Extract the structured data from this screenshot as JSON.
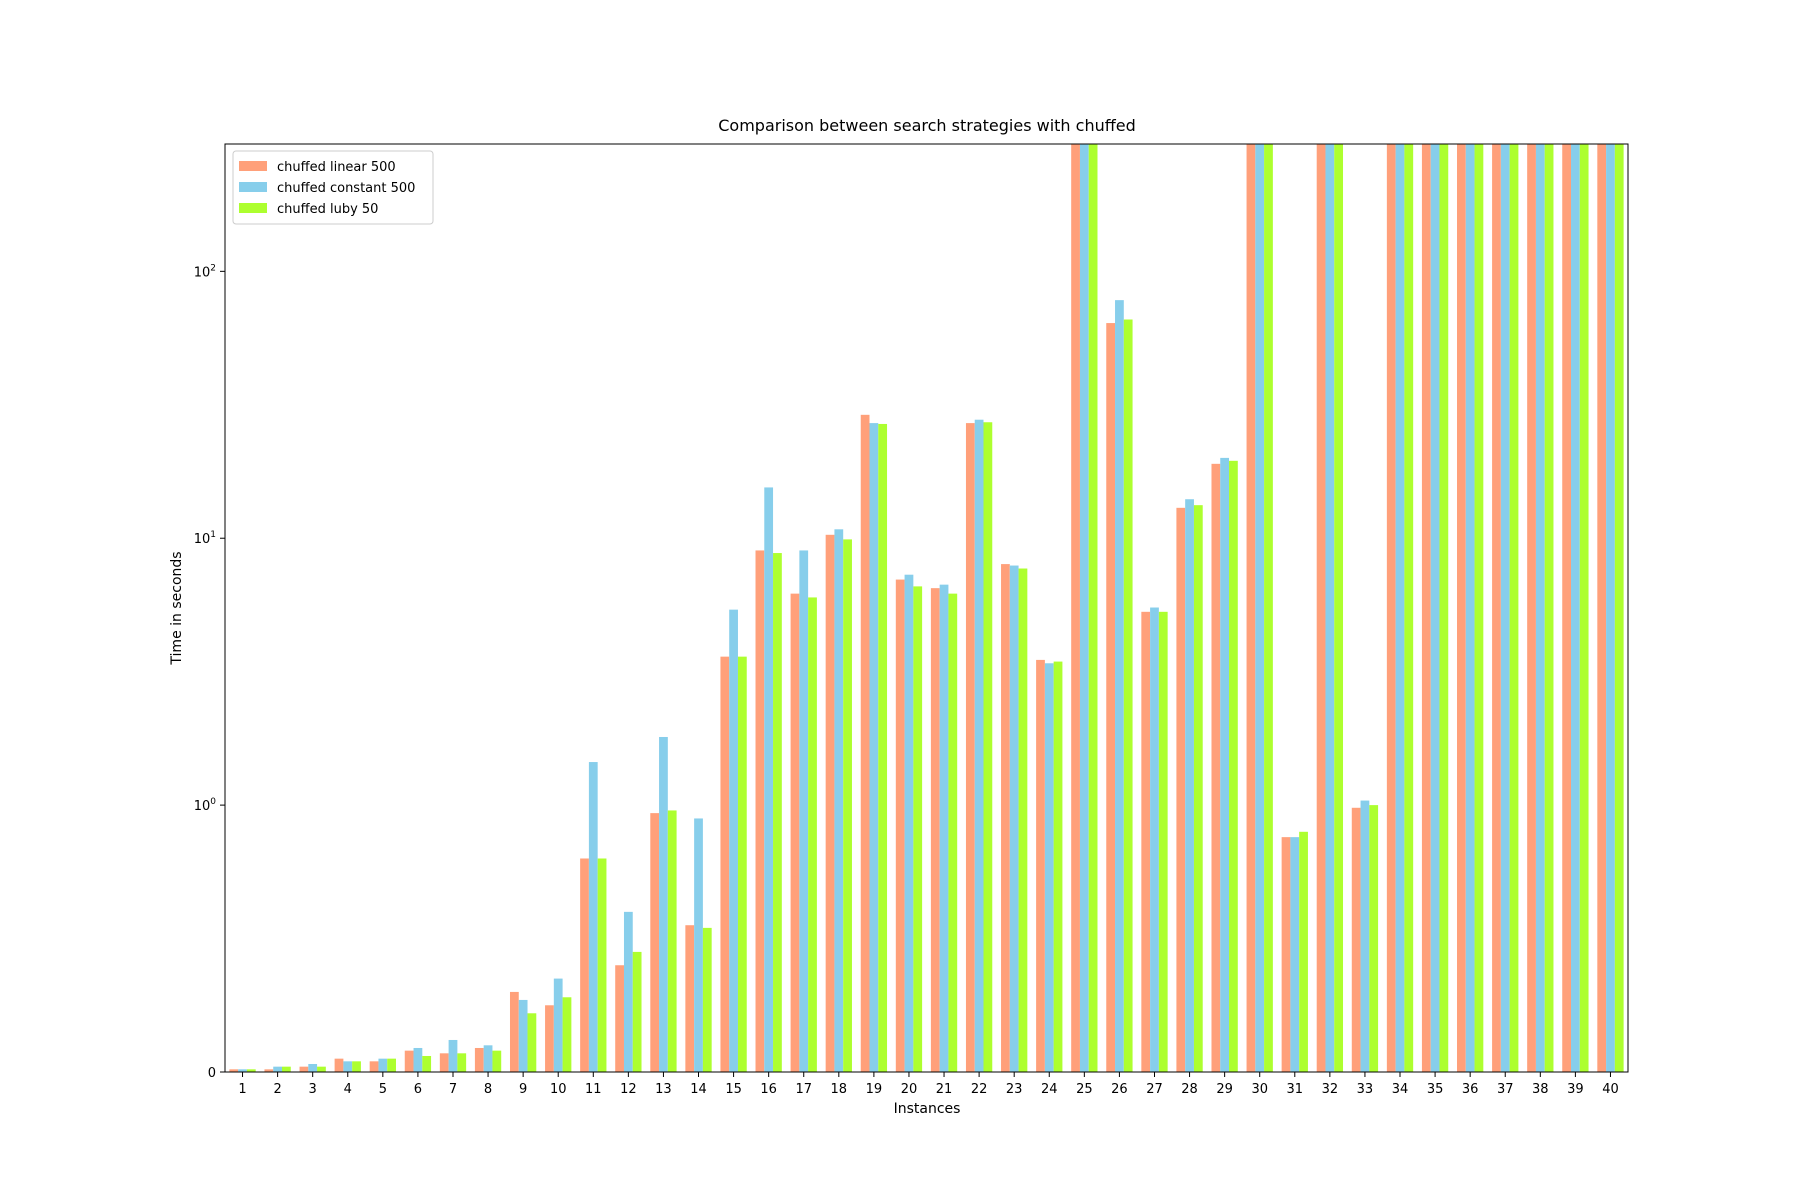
{
  "chart_data": {
    "type": "bar",
    "title": "Comparison between search strategies with chuffed",
    "xlabel": "Instances",
    "ylabel": "Time in seconds",
    "yscale": "symlog",
    "ylim": [
      0,
      300
    ],
    "yticks": [
      {
        "value": 0,
        "label": "0"
      },
      {
        "value": 1,
        "label": "10",
        "exp": "0"
      },
      {
        "value": 10,
        "label": "10",
        "exp": "1"
      },
      {
        "value": 100,
        "label": "10",
        "exp": "2"
      }
    ],
    "grid": false,
    "legend_position": "top-left",
    "categories": [
      "1",
      "2",
      "3",
      "4",
      "5",
      "6",
      "7",
      "8",
      "9",
      "10",
      "11",
      "12",
      "13",
      "14",
      "15",
      "16",
      "17",
      "18",
      "19",
      "20",
      "21",
      "22",
      "23",
      "24",
      "25",
      "26",
      "27",
      "28",
      "29",
      "30",
      "31",
      "32",
      "33",
      "34",
      "35",
      "36",
      "37",
      "38",
      "39",
      "40"
    ],
    "series": [
      {
        "name": "chuffed linear 500",
        "color": "#FFA07A",
        "values": [
          0.01,
          0.01,
          0.02,
          0.05,
          0.04,
          0.08,
          0.07,
          0.09,
          0.3,
          0.25,
          0.8,
          0.4,
          0.97,
          0.55,
          3.6,
          9.0,
          6.2,
          10.3,
          29.0,
          7.0,
          6.5,
          27.0,
          8.0,
          3.5,
          300,
          64,
          5.3,
          13.0,
          19.0,
          300,
          0.88,
          300,
          0.99,
          300,
          300,
          300,
          300,
          300,
          300,
          300
        ]
      },
      {
        "name": "chuffed constant 500",
        "color": "#87CEEB",
        "values": [
          0.01,
          0.02,
          0.03,
          0.04,
          0.05,
          0.09,
          0.12,
          0.1,
          0.27,
          0.35,
          1.45,
          0.6,
          1.8,
          0.95,
          5.4,
          15.5,
          9.0,
          10.8,
          27.0,
          7.3,
          6.7,
          27.8,
          7.9,
          3.4,
          300,
          78,
          5.5,
          14.0,
          20.0,
          300,
          0.88,
          300,
          1.04,
          300,
          300,
          300,
          300,
          300,
          300,
          300
        ]
      },
      {
        "name": "chuffed luby 50",
        "color": "#ADFF2F",
        "values": [
          0.01,
          0.02,
          0.02,
          0.04,
          0.05,
          0.06,
          0.07,
          0.08,
          0.22,
          0.28,
          0.8,
          0.45,
          0.98,
          0.54,
          3.6,
          8.8,
          6.0,
          9.9,
          26.8,
          6.6,
          6.2,
          27.2,
          7.7,
          3.45,
          300,
          66,
          5.3,
          13.3,
          19.5,
          300,
          0.9,
          300,
          1.0,
          300,
          300,
          300,
          300,
          300,
          300,
          300
        ]
      }
    ]
  }
}
